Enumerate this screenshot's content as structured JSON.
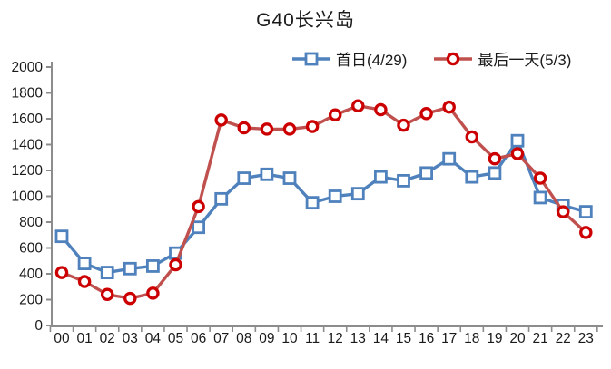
{
  "title": "G40长兴岛",
  "chart_data": {
    "type": "line",
    "title": "G40长兴岛",
    "x": [
      "00",
      "01",
      "02",
      "03",
      "04",
      "05",
      "06",
      "07",
      "08",
      "09",
      "10",
      "11",
      "12",
      "13",
      "14",
      "15",
      "16",
      "17",
      "18",
      "19",
      "20",
      "21",
      "22",
      "23"
    ],
    "series": [
      {
        "name": "首日(4/29)",
        "marker": "square",
        "line_color": "#4F81BD",
        "marker_color": "#4F81BD",
        "values": [
          690,
          480,
          410,
          440,
          460,
          560,
          760,
          980,
          1140,
          1170,
          1140,
          950,
          1000,
          1020,
          1150,
          1120,
          1180,
          1290,
          1150,
          1180,
          1430,
          990,
          930,
          880
        ]
      },
      {
        "name": "最后一天(5/3)",
        "marker": "circle",
        "line_color": "#C0504D",
        "marker_color": "#CC0000",
        "values": [
          410,
          340,
          240,
          210,
          250,
          470,
          920,
          1590,
          1530,
          1520,
          1520,
          1540,
          1630,
          1700,
          1670,
          1550,
          1640,
          1690,
          1460,
          1290,
          1330,
          1140,
          880,
          720
        ]
      }
    ],
    "ylim": [
      0,
      2000
    ],
    "ytick_step": 200,
    "yticks": [
      0,
      200,
      400,
      600,
      800,
      1000,
      1200,
      1400,
      1600,
      1800,
      2000
    ],
    "xlabel": "",
    "ylabel": "",
    "grid": false,
    "legend_position": "top",
    "axis_color": "#8C8C8C",
    "text_color": "#1A1A1A",
    "marker_fill": "#FFFFFF"
  }
}
